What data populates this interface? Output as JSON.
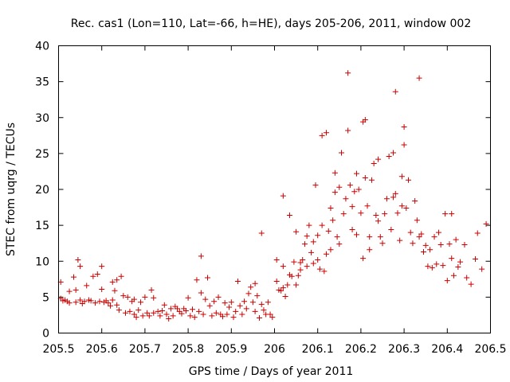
{
  "chart_data": {
    "type": "scatter",
    "title": "Rec. cas1 (Lon=110, Lat=-66, h=HE), days 205-206, 2011, window 002",
    "xlabel": "GPS time / Days of year 2011",
    "ylabel": "STEC from uqrg / TECUs",
    "xlim": [
      205.5,
      206.5
    ],
    "ylim": [
      0,
      40
    ],
    "xticks": [
      "205.5",
      "205.6",
      "205.7",
      "205.8",
      "205.9",
      "206",
      "206.1",
      "206.2",
      "206.3",
      "206.4",
      "206.5"
    ],
    "yticks": [
      "0",
      "5",
      "10",
      "15",
      "20",
      "25",
      "30",
      "35",
      "40"
    ],
    "marker": "+",
    "marker_color": "#cc0000",
    "grid": false,
    "points": [
      [
        205.505,
        7.1
      ],
      [
        205.505,
        4.8
      ],
      [
        205.51,
        4.5
      ],
      [
        205.515,
        4.6
      ],
      [
        205.52,
        4.4
      ],
      [
        205.525,
        5.8
      ],
      [
        205.525,
        4.2
      ],
      [
        205.535,
        7.8
      ],
      [
        205.54,
        6.0
      ],
      [
        205.54,
        4.3
      ],
      [
        205.545,
        10.2
      ],
      [
        205.55,
        9.3
      ],
      [
        205.55,
        4.6
      ],
      [
        205.555,
        4.1
      ],
      [
        205.56,
        4.4
      ],
      [
        205.565,
        6.6
      ],
      [
        205.57,
        4.6
      ],
      [
        205.575,
        4.5
      ],
      [
        205.58,
        7.9
      ],
      [
        205.585,
        4.2
      ],
      [
        205.59,
        8.2
      ],
      [
        205.595,
        4.4
      ],
      [
        205.6,
        6.1
      ],
      [
        205.6,
        9.3
      ],
      [
        205.605,
        4.3
      ],
      [
        205.61,
        4.5
      ],
      [
        205.615,
        4.2
      ],
      [
        205.62,
        3.8
      ],
      [
        205.625,
        7.1
      ],
      [
        205.625,
        4.6
      ],
      [
        205.63,
        5.9
      ],
      [
        205.635,
        3.9
      ],
      [
        205.635,
        7.4
      ],
      [
        205.64,
        3.2
      ],
      [
        205.645,
        7.9
      ],
      [
        205.65,
        5.2
      ],
      [
        205.655,
        2.8
      ],
      [
        205.66,
        5.0
      ],
      [
        205.665,
        3.0
      ],
      [
        205.67,
        4.4
      ],
      [
        205.675,
        2.6
      ],
      [
        205.675,
        4.7
      ],
      [
        205.68,
        2.2
      ],
      [
        205.685,
        3.2
      ],
      [
        205.69,
        4.3
      ],
      [
        205.695,
        2.4
      ],
      [
        205.7,
        5.0
      ],
      [
        205.705,
        2.8
      ],
      [
        205.71,
        2.4
      ],
      [
        205.715,
        6.0
      ],
      [
        205.72,
        4.9
      ],
      [
        205.72,
        2.8
      ],
      [
        205.73,
        3.0
      ],
      [
        205.735,
        2.4
      ],
      [
        205.74,
        3.1
      ],
      [
        205.745,
        3.9
      ],
      [
        205.75,
        2.6
      ],
      [
        205.755,
        2.0
      ],
      [
        205.76,
        3.4
      ],
      [
        205.765,
        2.4
      ],
      [
        205.77,
        3.7
      ],
      [
        205.775,
        3.4
      ],
      [
        205.78,
        3.0
      ],
      [
        205.785,
        2.7
      ],
      [
        205.79,
        3.4
      ],
      [
        205.795,
        3.1
      ],
      [
        205.8,
        4.9
      ],
      [
        205.805,
        2.4
      ],
      [
        205.81,
        3.3
      ],
      [
        205.815,
        2.2
      ],
      [
        205.82,
        7.4
      ],
      [
        205.825,
        3.0
      ],
      [
        205.83,
        5.6
      ],
      [
        205.83,
        10.7
      ],
      [
        205.835,
        2.6
      ],
      [
        205.84,
        4.7
      ],
      [
        205.845,
        7.7
      ],
      [
        205.85,
        3.8
      ],
      [
        205.855,
        2.4
      ],
      [
        205.86,
        4.4
      ],
      [
        205.865,
        2.8
      ],
      [
        205.87,
        5.0
      ],
      [
        205.875,
        2.6
      ],
      [
        205.88,
        2.3
      ],
      [
        205.885,
        4.2
      ],
      [
        205.89,
        2.6
      ],
      [
        205.895,
        3.6
      ],
      [
        205.9,
        4.3
      ],
      [
        205.905,
        2.2
      ],
      [
        205.91,
        3.0
      ],
      [
        205.915,
        7.2
      ],
      [
        205.92,
        3.8
      ],
      [
        205.925,
        2.6
      ],
      [
        205.93,
        4.4
      ],
      [
        205.935,
        3.4
      ],
      [
        205.94,
        5.5
      ],
      [
        205.945,
        6.4
      ],
      [
        205.95,
        4.3
      ],
      [
        205.955,
        6.9
      ],
      [
        205.955,
        3.0
      ],
      [
        205.96,
        5.2
      ],
      [
        205.965,
        2.1
      ],
      [
        205.97,
        13.9
      ],
      [
        205.97,
        4.0
      ],
      [
        205.975,
        3.2
      ],
      [
        205.98,
        2.6
      ],
      [
        205.985,
        4.3
      ],
      [
        205.99,
        2.6
      ],
      [
        205.995,
        2.2
      ],
      [
        206.005,
        10.2
      ],
      [
        206.005,
        7.2
      ],
      [
        206.01,
        6.0
      ],
      [
        206.015,
        5.9
      ],
      [
        206.02,
        9.3
      ],
      [
        206.02,
        6.3
      ],
      [
        206.02,
        19.1
      ],
      [
        206.025,
        5.1
      ],
      [
        206.03,
        6.7
      ],
      [
        206.035,
        8.1
      ],
      [
        206.035,
        16.4
      ],
      [
        206.04,
        7.9
      ],
      [
        206.045,
        9.9
      ],
      [
        206.05,
        6.7
      ],
      [
        206.05,
        14.1
      ],
      [
        206.055,
        8.0
      ],
      [
        206.06,
        9.8
      ],
      [
        206.06,
        8.8
      ],
      [
        206.065,
        10.2
      ],
      [
        206.07,
        12.4
      ],
      [
        206.075,
        13.5
      ],
      [
        206.075,
        9.3
      ],
      [
        206.08,
        15.0
      ],
      [
        206.085,
        11.2
      ],
      [
        206.09,
        9.7
      ],
      [
        206.09,
        12.7
      ],
      [
        206.095,
        20.6
      ],
      [
        206.1,
        10.2
      ],
      [
        206.1,
        13.6
      ],
      [
        206.105,
        8.9
      ],
      [
        206.11,
        27.5
      ],
      [
        206.11,
        15.0
      ],
      [
        206.115,
        8.6
      ],
      [
        206.12,
        11.0
      ],
      [
        206.12,
        27.9
      ],
      [
        206.125,
        14.2
      ],
      [
        206.13,
        11.6
      ],
      [
        206.13,
        17.4
      ],
      [
        206.135,
        15.7
      ],
      [
        206.14,
        22.3
      ],
      [
        206.14,
        19.6
      ],
      [
        206.145,
        13.4
      ],
      [
        206.15,
        12.4
      ],
      [
        206.15,
        20.3
      ],
      [
        206.155,
        25.1
      ],
      [
        206.16,
        16.6
      ],
      [
        206.165,
        18.7
      ],
      [
        206.17,
        36.2
      ],
      [
        206.17,
        28.2
      ],
      [
        206.175,
        20.6
      ],
      [
        206.18,
        14.4
      ],
      [
        206.18,
        17.6
      ],
      [
        206.185,
        19.7
      ],
      [
        206.19,
        13.7
      ],
      [
        206.19,
        22.2
      ],
      [
        206.195,
        20.0
      ],
      [
        206.2,
        16.7
      ],
      [
        206.205,
        29.4
      ],
      [
        206.205,
        10.4
      ],
      [
        206.21,
        29.7
      ],
      [
        206.21,
        21.6
      ],
      [
        206.215,
        17.7
      ],
      [
        206.22,
        11.6
      ],
      [
        206.22,
        13.4
      ],
      [
        206.225,
        21.3
      ],
      [
        206.23,
        23.6
      ],
      [
        206.235,
        16.4
      ],
      [
        206.24,
        24.2
      ],
      [
        206.24,
        15.6
      ],
      [
        206.245,
        13.4
      ],
      [
        206.25,
        12.5
      ],
      [
        206.255,
        16.6
      ],
      [
        206.26,
        18.7
      ],
      [
        206.265,
        24.6
      ],
      [
        206.27,
        14.4
      ],
      [
        206.275,
        25.1
      ],
      [
        206.275,
        18.9
      ],
      [
        206.28,
        33.6
      ],
      [
        206.28,
        19.4
      ],
      [
        206.285,
        16.7
      ],
      [
        206.29,
        12.9
      ],
      [
        206.295,
        17.7
      ],
      [
        206.295,
        21.8
      ],
      [
        206.3,
        26.2
      ],
      [
        206.3,
        28.7
      ],
      [
        206.305,
        17.4
      ],
      [
        206.31,
        21.3
      ],
      [
        206.315,
        14.0
      ],
      [
        206.32,
        12.5
      ],
      [
        206.325,
        18.4
      ],
      [
        206.33,
        15.7
      ],
      [
        206.335,
        35.5
      ],
      [
        206.335,
        13.4
      ],
      [
        206.34,
        13.8
      ],
      [
        206.345,
        11.3
      ],
      [
        206.35,
        12.2
      ],
      [
        206.355,
        9.3
      ],
      [
        206.36,
        11.6
      ],
      [
        206.365,
        9.1
      ],
      [
        206.37,
        13.4
      ],
      [
        206.375,
        9.6
      ],
      [
        206.38,
        14.0
      ],
      [
        206.385,
        12.3
      ],
      [
        206.39,
        9.4
      ],
      [
        206.395,
        16.6
      ],
      [
        206.4,
        7.3
      ],
      [
        206.405,
        12.4
      ],
      [
        206.41,
        16.6
      ],
      [
        206.41,
        10.4
      ],
      [
        206.415,
        8.0
      ],
      [
        206.42,
        13.0
      ],
      [
        206.425,
        9.2
      ],
      [
        206.43,
        9.9
      ],
      [
        206.44,
        12.3
      ],
      [
        206.445,
        7.7
      ],
      [
        206.455,
        6.8
      ],
      [
        206.465,
        10.3
      ],
      [
        206.47,
        13.9
      ],
      [
        206.48,
        8.9
      ],
      [
        206.49,
        15.2
      ]
    ]
  }
}
